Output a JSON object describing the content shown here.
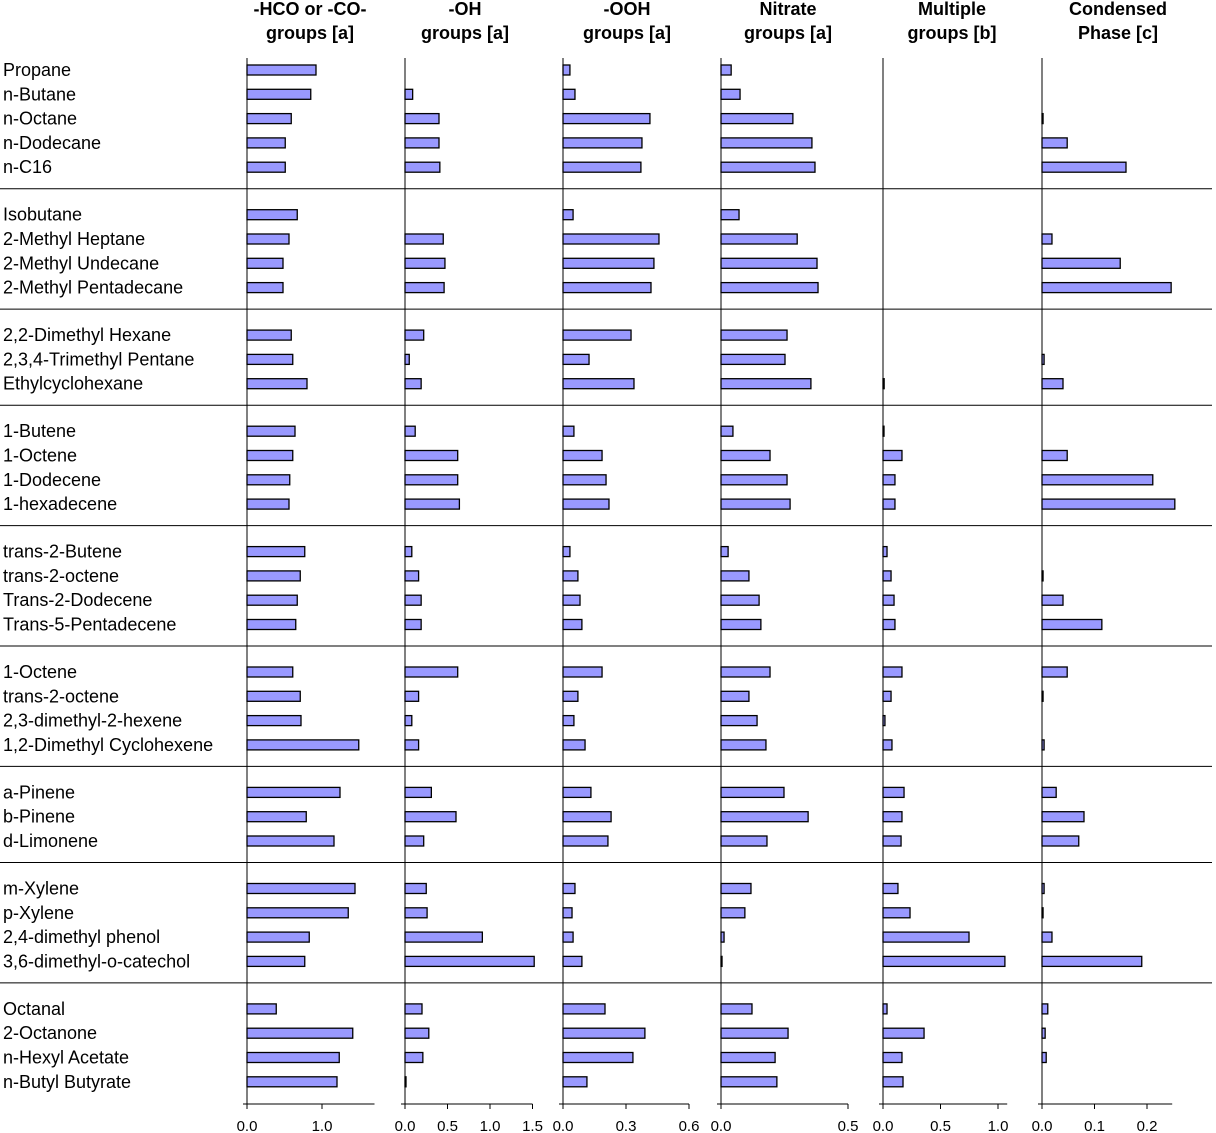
{
  "chart_data": {
    "type": "bar",
    "orientation": "horizontal",
    "groups": [
      [
        "Propane",
        "n-Butane",
        "n-Octane",
        "n-Dodecane",
        "n-C16"
      ],
      [
        "Isobutane",
        "2-Methyl Heptane",
        "2-Methyl Undecane",
        "2-Methyl Pentadecane"
      ],
      [
        "2,2-Dimethyl Hexane",
        "2,3,4-Trimethyl Pentane",
        "Ethylcyclohexane"
      ],
      [
        "1-Butene",
        "1-Octene",
        "1-Dodecene",
        "1-hexadecene"
      ],
      [
        "trans-2-Butene",
        "trans-2-octene",
        "Trans-2-Dodecene",
        "Trans-5-Pentadecene"
      ],
      [
        "1-Octene",
        "trans-2-octene",
        "2,3-dimethyl-2-hexene",
        "1,2-Dimethyl Cyclohexene"
      ],
      [
        "a-Pinene",
        "b-Pinene",
        "d-Limonene"
      ],
      [
        "m-Xylene",
        "p-Xylene",
        "2,4-dimethyl phenol",
        "3,6-dimethyl-o-catechol"
      ],
      [
        "Octanal",
        "2-Octanone",
        "n-Hexyl Acetate",
        "n-Butyl Butyrate"
      ]
    ],
    "series": [
      {
        "name": "-HCO or -CO- groups [a]",
        "header": [
          "-HCO or -CO-",
          "groups [a]"
        ],
        "xlim": [
          0,
          1.7
        ],
        "ticks": [
          {
            "v": 0,
            "label": "0.0"
          },
          {
            "v": 1,
            "label": "1.0"
          }
        ],
        "values": [
          0.92,
          0.85,
          0.59,
          0.51,
          0.51,
          0.67,
          0.56,
          0.48,
          0.48,
          0.59,
          0.61,
          0.8,
          0.64,
          0.61,
          0.57,
          0.56,
          0.77,
          0.71,
          0.67,
          0.65,
          0.61,
          0.71,
          0.72,
          1.49,
          1.24,
          0.79,
          1.16,
          1.44,
          1.35,
          0.83,
          0.77,
          0.39,
          1.41,
          1.23,
          1.2
        ]
      },
      {
        "name": "-OH groups [a]",
        "header": [
          "-OH",
          "groups [a]"
        ],
        "xlim": [
          0,
          1.5
        ],
        "ticks": [
          {
            "v": 0,
            "label": "0.0"
          },
          {
            "v": 0.5,
            "label": "0.5"
          },
          {
            "v": 1,
            "label": "1.0"
          },
          {
            "v": 1.5,
            "label": "1.5"
          }
        ],
        "values": [
          0,
          0.09,
          0.4,
          0.4,
          0.41,
          0,
          0.45,
          0.47,
          0.46,
          0.22,
          0.05,
          0.19,
          0.12,
          0.62,
          0.62,
          0.64,
          0.08,
          0.16,
          0.19,
          0.19,
          0.62,
          0.16,
          0.08,
          0.16,
          0.31,
          0.6,
          0.22,
          0.25,
          0.26,
          0.91,
          1.52,
          0.2,
          0.28,
          0.21,
          0.01
        ]
      },
      {
        "name": "-OOH groups [a]",
        "header": [
          "-OOH",
          "groups [a]"
        ],
        "xlim": [
          0,
          0.6
        ],
        "ticks": [
          {
            "v": 0,
            "label": "0.0"
          },
          {
            "v": 0.3,
            "label": "0.3"
          },
          {
            "v": 0.6,
            "label": "0.6"
          }
        ],
        "values": [
          0.033,
          0.057,
          0.414,
          0.376,
          0.371,
          0.048,
          0.457,
          0.433,
          0.419,
          0.324,
          0.124,
          0.338,
          0.052,
          0.186,
          0.205,
          0.219,
          0.033,
          0.071,
          0.081,
          0.09,
          0.186,
          0.071,
          0.052,
          0.105,
          0.133,
          0.229,
          0.214,
          0.057,
          0.043,
          0.048,
          0.09,
          0.2,
          0.39,
          0.333,
          0.114
        ]
      },
      {
        "name": "Nitrate groups [a]",
        "header": [
          "Nitrate",
          "groups [a]"
        ],
        "xlim": [
          0,
          0.5
        ],
        "ticks": [
          {
            "v": 0,
            "label": "0.0"
          },
          {
            "v": 0.5,
            "label": "0.5"
          }
        ],
        "values": [
          0.04,
          0.075,
          0.283,
          0.358,
          0.37,
          0.071,
          0.3,
          0.378,
          0.382,
          0.26,
          0.252,
          0.354,
          0.047,
          0.193,
          0.26,
          0.272,
          0.028,
          0.11,
          0.15,
          0.157,
          0.193,
          0.11,
          0.142,
          0.177,
          0.248,
          0.343,
          0.181,
          0.118,
          0.094,
          0.012,
          0.004,
          0.122,
          0.264,
          0.213,
          0.22
        ]
      },
      {
        "name": "Multiple groups [b]",
        "header": [
          "Multiple",
          "groups [b]"
        ],
        "xlim": [
          0,
          1.08
        ],
        "ticks": [
          {
            "v": 0,
            "label": "0.0"
          },
          {
            "v": 0.5,
            "label": "0.5"
          },
          {
            "v": 1,
            "label": "1.0"
          }
        ],
        "values": [
          0,
          0,
          0,
          0,
          0,
          0,
          0,
          0,
          0,
          0,
          0,
          0.01,
          0.005,
          0.165,
          0.104,
          0.104,
          0.035,
          0.07,
          0.096,
          0.104,
          0.165,
          0.07,
          0.017,
          0.078,
          0.183,
          0.165,
          0.157,
          0.13,
          0.235,
          0.748,
          1.06,
          0.035,
          0.357,
          0.165,
          0.174
        ]
      },
      {
        "name": "Condensed Phase [c]",
        "header": [
          "Condensed",
          "Phase [c]"
        ],
        "xlim": [
          0,
          0.248
        ],
        "ticks": [
          {
            "v": 0,
            "label": "0.0"
          },
          {
            "v": 0.1,
            "label": "0.1"
          },
          {
            "v": 0.2,
            "label": "0.2"
          }
        ],
        "values": [
          0,
          0,
          0.002,
          0.048,
          0.16,
          0,
          0.019,
          0.149,
          0.246,
          0,
          0.004,
          0.04,
          0,
          0.048,
          0.211,
          0.253,
          0,
          0.002,
          0.04,
          0.114,
          0.048,
          0.002,
          0,
          0.004,
          0.027,
          0.08,
          0.07,
          0.004,
          0.002,
          0.019,
          0.19,
          0.011,
          0.006,
          0.008,
          0
        ]
      }
    ],
    "title": "",
    "xlabel": "",
    "ylabel": "",
    "grid": false,
    "colors": {
      "bar": "#9999ff",
      "edge": "#000000"
    }
  }
}
